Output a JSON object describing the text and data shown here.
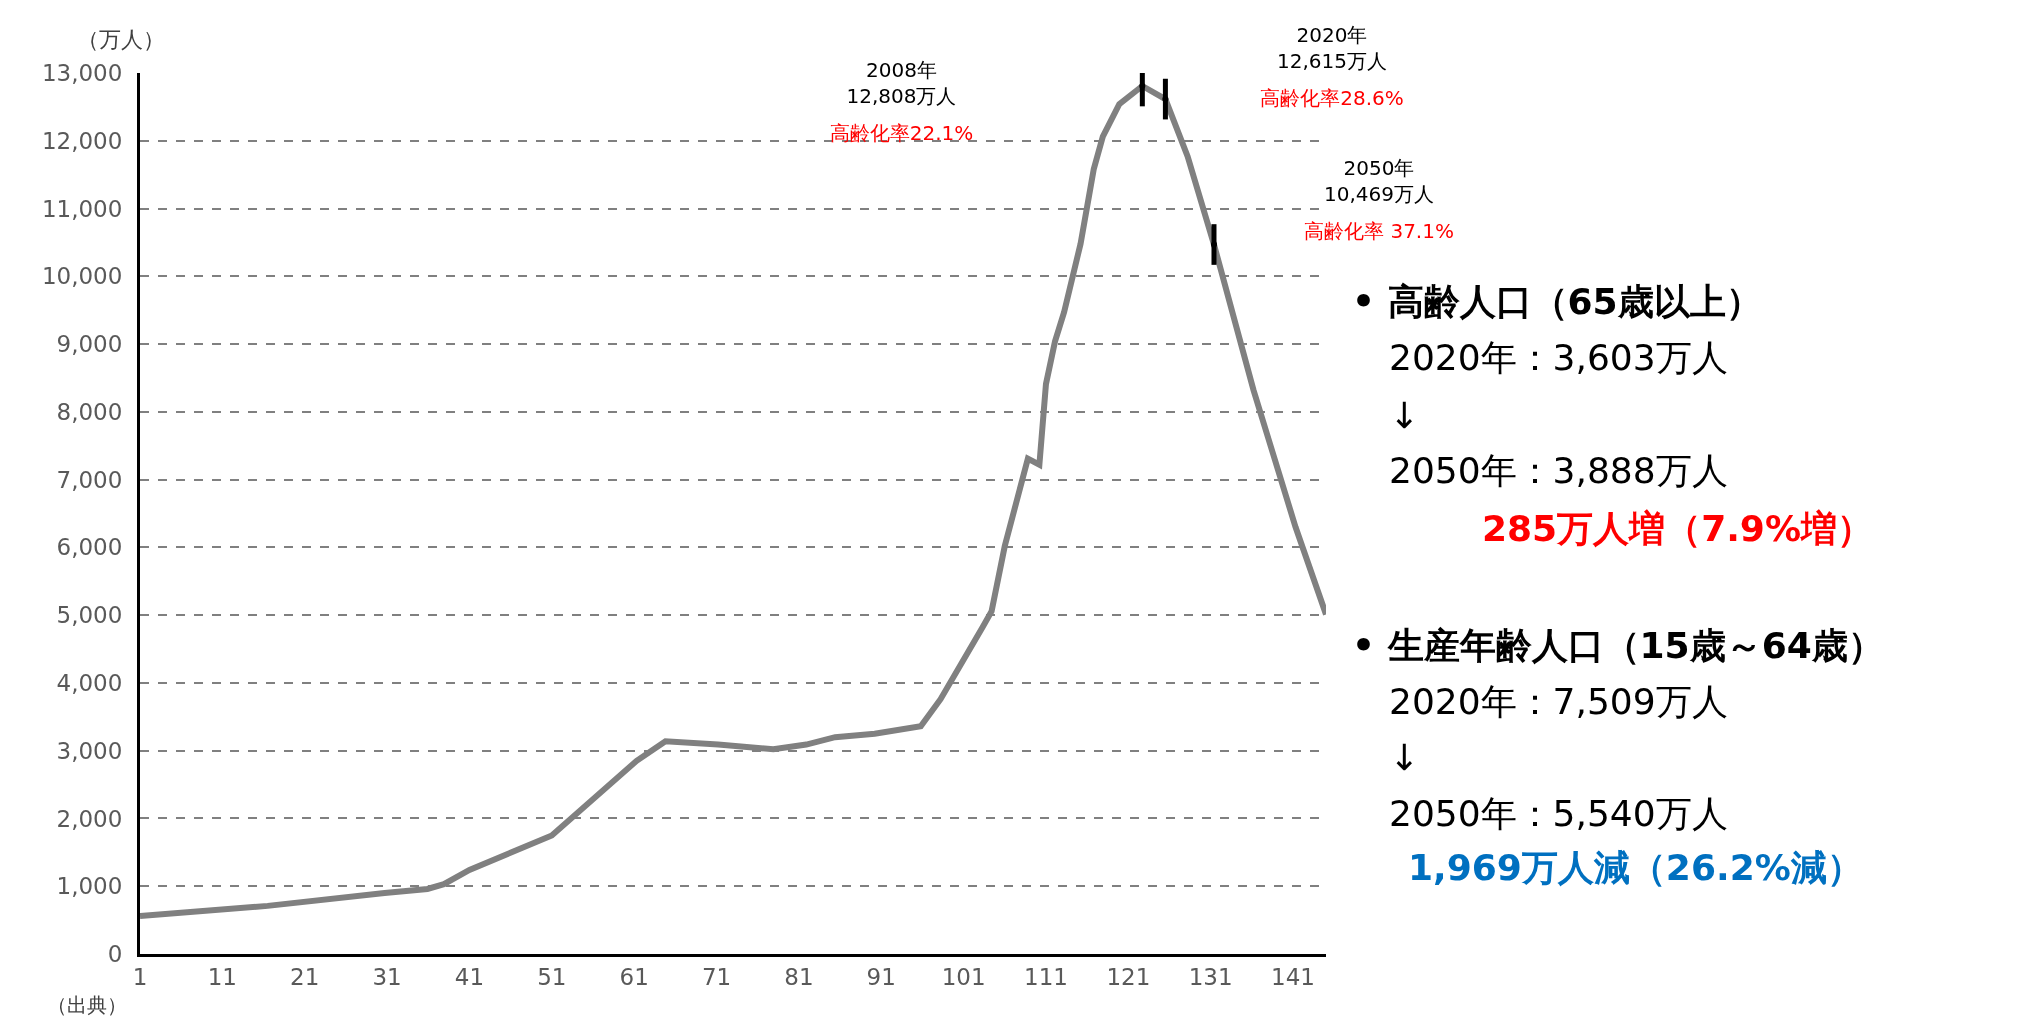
{
  "chart_data": {
    "type": "line",
    "ylabel": "（万人）",
    "x": [
      1,
      16.5,
      30.7,
      35.9,
      37.9,
      41,
      51,
      61.3,
      64.8,
      71.2,
      77.9,
      81.9,
      85.4,
      90.2,
      95.8,
      98.2,
      103.3,
      104.4,
      106,
      108.8,
      110.2,
      111,
      112.1,
      113.2,
      115.2,
      116.8,
      117.9,
      119.9,
      122.7,
      125.5,
      128.2,
      131.4,
      136.2,
      141.3,
      145
    ],
    "series": [
      {
        "color": "#808080",
        "values": [
          560,
          710,
          900,
          960,
          1030,
          1240,
          1750,
          2850,
          3140,
          3090,
          3020,
          3090,
          3200,
          3250,
          3360,
          3760,
          4820,
          5060,
          6020,
          7310,
          7220,
          8410,
          9040,
          9470,
          10480,
          11580,
          12060,
          12540,
          12808,
          12615,
          11770,
          10469,
          8320,
          6300,
          5010
        ]
      },
      {
        "type": "scatter",
        "color": "#000000",
        "x": [
          122.7,
          125.5,
          131.4
        ],
        "values": [
          12808,
          12615,
          10469
        ],
        "errors": [
          300,
          300,
          300
        ]
      }
    ],
    "xlim": [
      1,
      145
    ],
    "xticks": [
      1,
      11,
      21,
      31,
      41,
      51,
      61,
      71,
      81,
      91,
      101,
      111,
      121,
      131,
      141
    ],
    "ylim": [
      0,
      13000
    ],
    "yticks": [
      0,
      {
        "value": 1000,
        "label": "1,000"
      },
      {
        "value": 2000,
        "label": "2,000"
      },
      {
        "value": 3000,
        "label": "3,000"
      },
      {
        "value": 4000,
        "label": "4,000"
      },
      {
        "value": 5000,
        "label": "5,000"
      },
      {
        "value": 6000,
        "label": "6,000"
      },
      {
        "value": 7000,
        "label": "7,000"
      },
      {
        "value": 8000,
        "label": "8,000"
      },
      {
        "value": 9000,
        "label": "9,000"
      },
      {
        "value": 10000,
        "label": "10,000"
      },
      {
        "value": 11000,
        "label": "11,000"
      },
      {
        "value": 12000,
        "label": "12,000"
      },
      {
        "value": 13000,
        "label": "13,000"
      }
    ],
    "grid": "y",
    "marker": "none",
    "line_style": "solid",
    "annotations": [
      "2008年\n12,808万人",
      "高齢化率22.1%",
      "2020年\n12,615万人",
      "高齢化率28.6%",
      "2050年\n10,469万人",
      "高齢化率 37.1%",
      "• 高齢人口（65歳以上）",
      "2020年：3,603万人",
      "↓",
      "2050年：3,888万人",
      "285万人増（7.9%増）",
      "• 生産年齢人口（15歳～64歳）",
      "2020年：7,509万人",
      "↓",
      "2050年：5,540万人",
      "1,969万人減（26.2%減）",
      "（出典）"
    ]
  }
}
